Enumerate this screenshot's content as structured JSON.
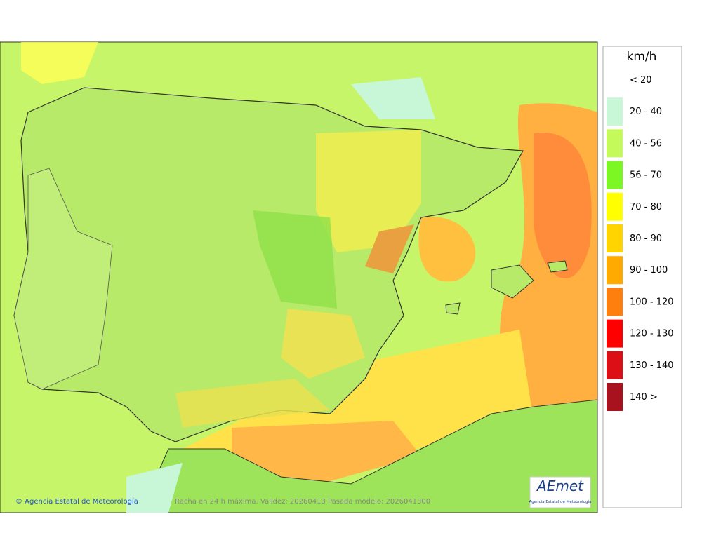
{
  "legend": {
    "unit": "km/h",
    "items": [
      {
        "label": "< 20",
        "color": "#ffffff"
      },
      {
        "label": "20 - 40",
        "color": "#c8f7d8"
      },
      {
        "label": "40 - 56",
        "color": "#c4fb5a"
      },
      {
        "label": "56 - 70",
        "color": "#7cf724"
      },
      {
        "label": "70 - 80",
        "color": "#ffff00"
      },
      {
        "label": "80 - 90",
        "color": "#ffd400"
      },
      {
        "label": "90 - 100",
        "color": "#ffaa00"
      },
      {
        "label": "100 - 120",
        "color": "#ff7f0e"
      },
      {
        "label": "120 - 130",
        "color": "#ff0000"
      },
      {
        "label": "130 - 140",
        "color": "#dc0f16"
      },
      {
        "label": "140 >",
        "color": "#a8121e"
      }
    ]
  },
  "footer": {
    "credit": "© Agencia Estatal de Meteorología",
    "caption": "Racha en 24 h máxima. Validez: 20260413 Pasada modelo: 2026041300"
  },
  "logo": {
    "name": "AEmet",
    "subtitle": "Agencia Estatal de Meteorología"
  }
}
